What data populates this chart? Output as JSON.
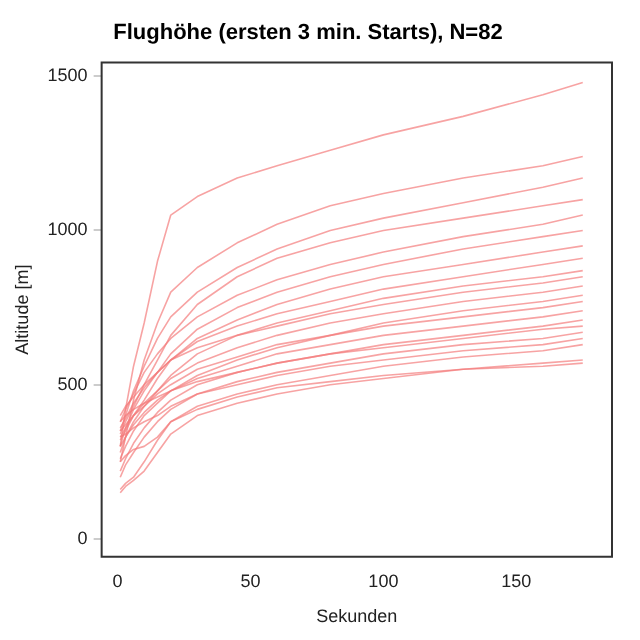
{
  "chart_data": {
    "type": "line",
    "title": "Flughöhe (ersten 3 min. Starts), N=82",
    "xlabel": "Sekunden",
    "ylabel": "Altitude [m]",
    "xlim": [
      -6,
      186
    ],
    "xticks": [
      0,
      50,
      100,
      150
    ],
    "ylim": [
      -58,
      1545
    ],
    "yticks": [
      0,
      500,
      1000,
      1500
    ],
    "grid": false,
    "legend": false,
    "marker": "none",
    "line_style": "solid",
    "x": [
      1,
      3,
      6,
      10,
      15,
      20,
      30,
      45,
      60,
      80,
      100,
      130,
      160,
      175
    ],
    "series": [
      {
        "color": "#f47a7a",
        "values": [
          300,
          420,
          560,
          700,
          900,
          1050,
          1110,
          1170,
          1210,
          1260,
          1310,
          1370,
          1440,
          1480
        ]
      },
      {
        "color": "#f47a7a",
        "values": [
          250,
          330,
          450,
          580,
          700,
          800,
          880,
          960,
          1020,
          1080,
          1120,
          1170,
          1210,
          1240
        ]
      },
      {
        "color": "#f47a7a",
        "values": [
          350,
          400,
          480,
          560,
          650,
          720,
          800,
          880,
          940,
          1000,
          1040,
          1090,
          1140,
          1170
        ]
      },
      {
        "color": "#f47a7a",
        "values": [
          340,
          380,
          430,
          500,
          580,
          660,
          760,
          850,
          910,
          960,
          1000,
          1040,
          1080,
          1100
        ]
      },
      {
        "color": "#f47a7a",
        "values": [
          380,
          420,
          470,
          540,
          600,
          650,
          720,
          790,
          840,
          890,
          930,
          980,
          1020,
          1050
        ]
      },
      {
        "color": "#f47a7a",
        "values": [
          300,
          360,
          420,
          480,
          540,
          600,
          680,
          750,
          800,
          850,
          890,
          940,
          980,
          1000
        ]
      },
      {
        "color": "#f47a7a",
        "values": [
          320,
          350,
          400,
          450,
          520,
          580,
          650,
          710,
          760,
          810,
          850,
          890,
          930,
          950
        ]
      },
      {
        "color": "#f47a7a",
        "values": [
          360,
          390,
          440,
          490,
          540,
          580,
          640,
          690,
          730,
          770,
          810,
          850,
          890,
          910
        ]
      },
      {
        "color": "#f47a7a",
        "values": [
          280,
          330,
          380,
          430,
          480,
          530,
          600,
          660,
          700,
          740,
          780,
          820,
          850,
          870
        ]
      },
      {
        "color": "#f47a7a",
        "values": [
          400,
          430,
          460,
          500,
          540,
          580,
          620,
          660,
          690,
          730,
          760,
          800,
          830,
          850
        ]
      },
      {
        "color": "#f47a7a",
        "values": [
          330,
          360,
          400,
          440,
          480,
          520,
          570,
          620,
          660,
          700,
          730,
          770,
          800,
          820
        ]
      },
      {
        "color": "#f47a7a",
        "values": [
          260,
          300,
          350,
          400,
          440,
          480,
          530,
          580,
          620,
          660,
          700,
          740,
          770,
          790
        ]
      },
      {
        "color": "#f47a7a",
        "values": [
          350,
          370,
          400,
          430,
          470,
          500,
          550,
          590,
          630,
          660,
          690,
          720,
          750,
          770
        ]
      },
      {
        "color": "#f47a7a",
        "values": [
          300,
          330,
          370,
          410,
          450,
          480,
          520,
          560,
          600,
          630,
          660,
          690,
          720,
          740
        ]
      },
      {
        "color": "#f47a7a",
        "values": [
          220,
          260,
          310,
          360,
          410,
          450,
          500,
          540,
          570,
          600,
          630,
          660,
          690,
          710
        ]
      },
      {
        "color": "#f47a7a",
        "values": [
          380,
          400,
          420,
          440,
          460,
          480,
          510,
          540,
          570,
          600,
          620,
          650,
          680,
          690
        ]
      },
      {
        "color": "#f47a7a",
        "values": [
          200,
          240,
          280,
          330,
          380,
          420,
          470,
          510,
          540,
          570,
          600,
          630,
          650,
          670
        ]
      },
      {
        "color": "#f47a7a",
        "values": [
          330,
          340,
          360,
          380,
          400,
          430,
          470,
          500,
          530,
          560,
          580,
          610,
          630,
          650
        ]
      },
      {
        "color": "#f47a7a",
        "values": [
          160,
          180,
          200,
          250,
          320,
          380,
          430,
          470,
          500,
          530,
          560,
          590,
          610,
          630
        ]
      },
      {
        "color": "#f47a7a",
        "values": [
          150,
          170,
          190,
          220,
          280,
          340,
          400,
          440,
          470,
          500,
          520,
          550,
          570,
          580
        ]
      },
      {
        "color": "#f47a7a",
        "values": [
          250,
          270,
          290,
          300,
          330,
          380,
          420,
          460,
          490,
          510,
          530,
          550,
          560,
          570
        ]
      }
    ]
  }
}
